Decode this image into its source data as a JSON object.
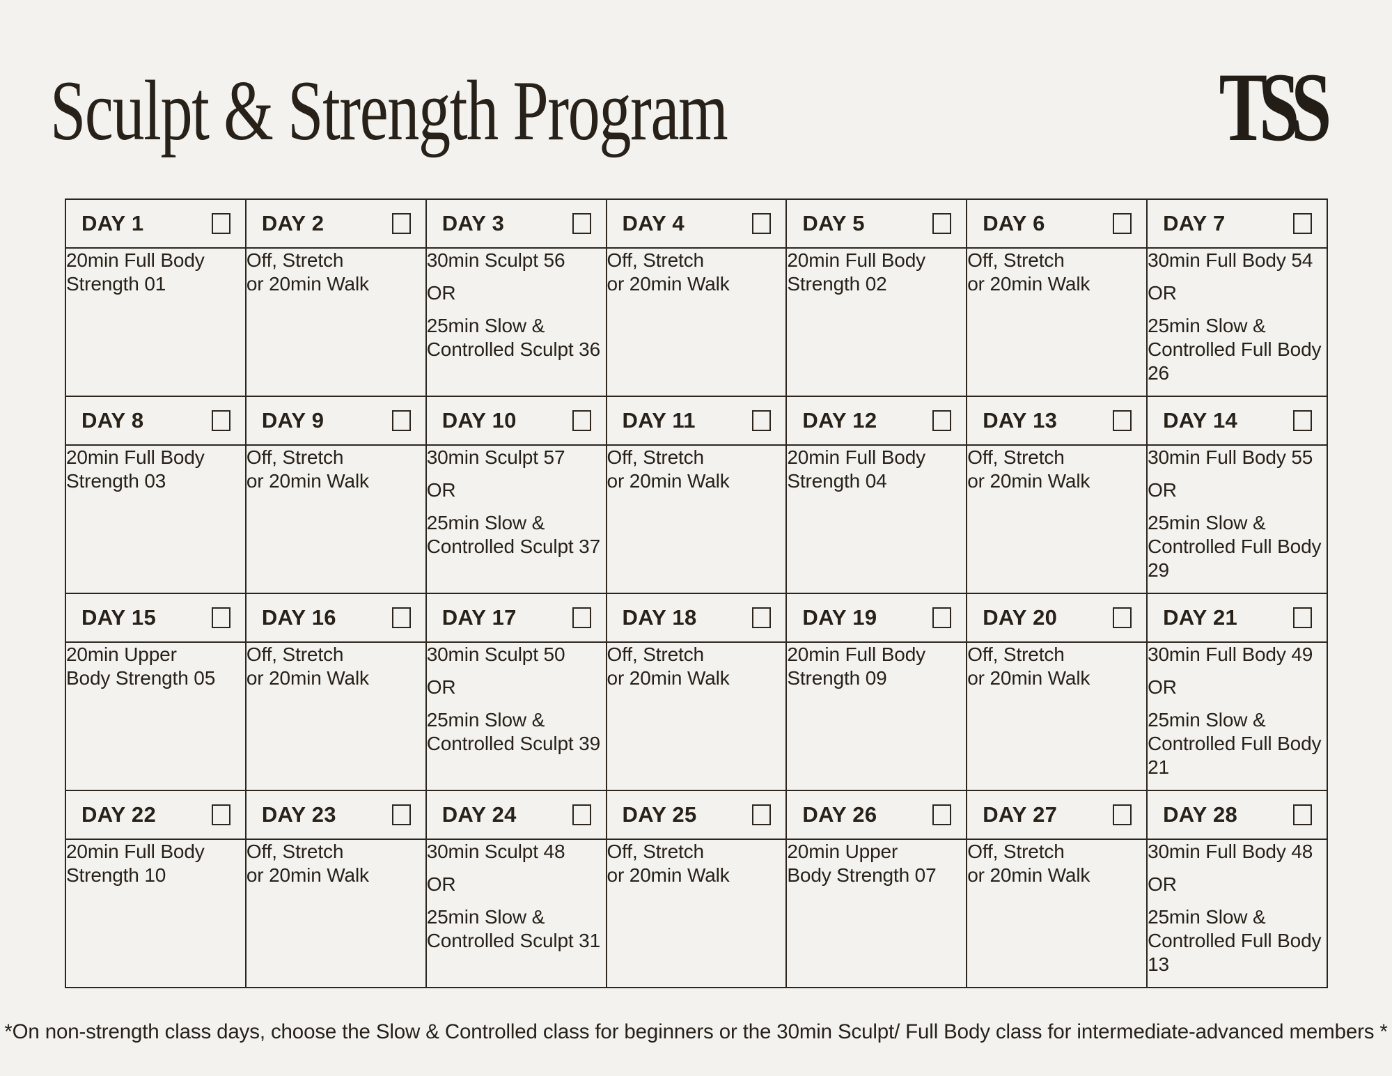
{
  "header": {
    "title": "Sculpt & Strength Program",
    "logo": "TSS"
  },
  "colors": {
    "background": "#f3f2ee",
    "ink": "#27211a",
    "border": "#2c261e"
  },
  "calendar": {
    "days": [
      {
        "label": "DAY 1",
        "paragraphs": [
          "20min Full Body\nStrength 01"
        ]
      },
      {
        "label": "DAY 2",
        "paragraphs": [
          "Off, Stretch\nor 20min Walk"
        ]
      },
      {
        "label": "DAY 3",
        "paragraphs": [
          "30min Sculpt 56",
          "OR",
          "25min Slow &\nControlled Sculpt 36"
        ]
      },
      {
        "label": "DAY 4",
        "paragraphs": [
          "Off, Stretch\nor 20min Walk"
        ]
      },
      {
        "label": "DAY 5",
        "paragraphs": [
          "20min Full Body\nStrength 02"
        ]
      },
      {
        "label": "DAY 6",
        "paragraphs": [
          "Off, Stretch\nor 20min Walk"
        ]
      },
      {
        "label": "DAY 7",
        "paragraphs": [
          "30min Full Body 54",
          "OR",
          "25min Slow &\nControlled Full Body\n26"
        ]
      },
      {
        "label": "DAY 8",
        "paragraphs": [
          "20min Full Body\nStrength 03"
        ]
      },
      {
        "label": "DAY 9",
        "paragraphs": [
          "Off, Stretch\nor 20min Walk"
        ]
      },
      {
        "label": "DAY 10",
        "paragraphs": [
          "30min Sculpt 57",
          "OR",
          "25min Slow &\nControlled Sculpt 37"
        ]
      },
      {
        "label": "DAY 11",
        "paragraphs": [
          "Off, Stretch\nor 20min Walk"
        ]
      },
      {
        "label": "DAY 12",
        "paragraphs": [
          "20min Full Body\nStrength 04"
        ]
      },
      {
        "label": "DAY 13",
        "paragraphs": [
          "Off, Stretch\nor 20min Walk"
        ]
      },
      {
        "label": "DAY 14",
        "paragraphs": [
          "30min Full Body 55",
          "OR",
          "25min Slow &\nControlled Full Body\n29"
        ]
      },
      {
        "label": "DAY 15",
        "paragraphs": [
          "20min Upper\nBody Strength 05"
        ]
      },
      {
        "label": "DAY 16",
        "paragraphs": [
          "Off, Stretch\nor 20min Walk"
        ]
      },
      {
        "label": "DAY 17",
        "paragraphs": [
          "30min Sculpt 50",
          "OR",
          "25min Slow &\nControlled Sculpt 39"
        ]
      },
      {
        "label": "DAY 18",
        "paragraphs": [
          "Off, Stretch\nor 20min Walk"
        ]
      },
      {
        "label": "DAY 19",
        "paragraphs": [
          "20min Full Body\nStrength 09"
        ]
      },
      {
        "label": "DAY 20",
        "paragraphs": [
          "Off, Stretch\nor 20min Walk"
        ]
      },
      {
        "label": "DAY 21",
        "paragraphs": [
          "30min Full Body 49",
          "OR",
          "25min Slow &\nControlled Full Body\n21"
        ]
      },
      {
        "label": "DAY 22",
        "paragraphs": [
          "20min Full Body\nStrength 10"
        ]
      },
      {
        "label": "DAY 23",
        "paragraphs": [
          "Off, Stretch\nor 20min Walk"
        ]
      },
      {
        "label": "DAY 24",
        "paragraphs": [
          "30min Sculpt 48",
          "OR",
          "25min Slow &\nControlled Sculpt 31"
        ]
      },
      {
        "label": "DAY 25",
        "paragraphs": [
          "Off, Stretch\nor 20min Walk"
        ]
      },
      {
        "label": "DAY 26",
        "paragraphs": [
          "20min Upper\nBody Strength 07"
        ]
      },
      {
        "label": "DAY 27",
        "paragraphs": [
          "Off, Stretch\nor 20min Walk"
        ]
      },
      {
        "label": "DAY 28",
        "paragraphs": [
          "30min Full Body 48",
          "OR",
          "25min Slow &\nControlled Full Body\n13"
        ]
      }
    ]
  },
  "footnote": {
    "text": "*On non-strength class days, choose the Slow & Controlled class for beginners or the 30min Sculpt/ Full Body class for intermediate-advanced members *"
  }
}
